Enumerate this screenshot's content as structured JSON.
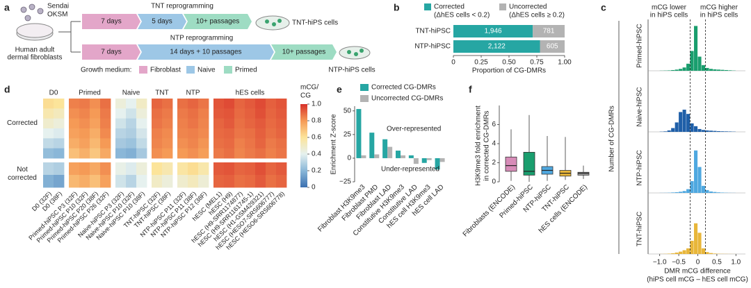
{
  "diagram": {
    "panel": "a",
    "virus": [
      "Sendai",
      "OKSM"
    ],
    "source": [
      "Human adult",
      "dermal fibroblasts"
    ],
    "tnt": {
      "title": "TNT reprogramming",
      "steps": [
        "7 days",
        "5 days",
        "10+ passages"
      ],
      "result": "TNT-hiPS cells"
    },
    "ntp": {
      "title": "NTP reprogramming",
      "steps": [
        "7 days",
        "14 days + 10 passages",
        "10+ passages"
      ],
      "result": "NTP-hiPS cells"
    },
    "medium": {
      "title": "Growth medium:",
      "items": [
        {
          "name": "Fibroblast",
          "color": "#e3a6c9"
        },
        {
          "name": "Naive",
          "color": "#9dc7e6"
        },
        {
          "name": "Primed",
          "color": "#9edcc3"
        }
      ]
    }
  },
  "chart_data": [
    {
      "type": "stacked-bar-h",
      "panel": "b",
      "normalize": true,
      "categories": [
        "TNT-hiPSC",
        "NTP-hiPSC"
      ],
      "series": [
        {
          "name": "Corrected",
          "subname": "(ΔhES cells < 0.2)",
          "color": "#26a6a3",
          "values": [
            1946,
            2122
          ],
          "value_labels": [
            "1,946",
            "2,122"
          ]
        },
        {
          "name": "Uncorrected",
          "subname": "(ΔhES cells ≥ 0.2)",
          "color": "#b3b3b3",
          "values": [
            781,
            605
          ]
        }
      ],
      "xlabel": "Proportion of CG-DMRs",
      "xlim": [
        0,
        1
      ],
      "xticks": [
        0,
        0.25,
        {
          "value": 0.5,
          "label": "0.50"
        },
        0.75,
        {
          "value": 1,
          "label": "1.00"
        }
      ]
    },
    {
      "type": "histogram",
      "panel": "c",
      "ylabel": "Number of CG-DMRs",
      "xlabel": [
        "DMR mCG difference",
        "(hiPS cell mCG – hES cell mCG)"
      ],
      "annotations": [
        [
          "mCG lower",
          "in hiPS cells"
        ],
        [
          "mCG higher",
          "in hiPS cells"
        ]
      ],
      "bins": [
        -1,
        -0.9,
        -0.8,
        -0.7,
        -0.6,
        -0.5,
        -0.4,
        -0.3,
        -0.2,
        -0.1,
        0,
        0.1,
        0.2,
        0.3,
        0.4,
        0.5,
        0.6,
        0.7,
        0.8,
        0.9,
        1
      ],
      "series": [
        {
          "name": "Primed-hiPSC",
          "color": "#1a9e6e",
          "values": [
            3,
            5,
            8,
            15,
            25,
            40,
            70,
            150,
            420,
            950,
            300,
            120,
            60,
            40,
            30,
            25,
            20,
            15,
            10,
            5
          ]
        },
        {
          "name": "Naive-hiPSC",
          "color": "#1f5fa8",
          "values": [
            5,
            10,
            30,
            80,
            200,
            420,
            470,
            380,
            180,
            120,
            60,
            40,
            30,
            25,
            20,
            15,
            12,
            10,
            8,
            5
          ]
        },
        {
          "name": "NTP-hiPSC",
          "color": "#4fa8e0",
          "values": [
            2,
            3,
            5,
            10,
            15,
            25,
            40,
            80,
            250,
            900,
            550,
            150,
            60,
            30,
            20,
            12,
            8,
            5,
            3,
            2
          ]
        },
        {
          "name": "TNT-hiPSC",
          "color": "#e8b63a",
          "values": [
            2,
            4,
            8,
            15,
            30,
            50,
            80,
            120,
            280,
            650,
            450,
            120,
            40,
            20,
            10,
            6,
            4,
            3,
            2,
            1
          ]
        }
      ],
      "xlim": [
        -1.25,
        1.25
      ],
      "ylim": [
        0,
        1000
      ],
      "xticks": [
        {
          "value": -1,
          "label": "−1.0"
        },
        {
          "value": -0.5,
          "label": "−0.5"
        },
        0,
        0.5,
        {
          "value": 1,
          "label": "1.0"
        }
      ],
      "reference_lines": [
        -0.2,
        0.2
      ]
    },
    {
      "type": "heatmap",
      "panel": "d",
      "groups": [
        {
          "name": "D0",
          "columns": [
            "D0 (32F)",
            "D0 (38F)"
          ]
        },
        {
          "name": "Primed",
          "columns": [
            "Primed-hiPSC P3 (32F)",
            "Primed-hiPSC P10 (32F)",
            "Primed-hiPSC P20 (38F)",
            "Primed-hiPSC P26 (32F)"
          ]
        },
        {
          "name": "Naive",
          "columns": [
            "Naive-hiPSC P3 (32F)",
            "Naive-hiPSC P10 (32F)",
            "Naive-hiPSC P10 (38F)"
          ]
        },
        {
          "name": "TNT",
          "columns": [
            "TNT-hiPSC (32F)",
            "TNT-hiPSC (38F)"
          ]
        },
        {
          "name": "NTP",
          "columns": [
            "NTP-hiPSC P11 (32F)",
            "NTP-hiPSC P11 (38F)",
            "NTP-hiPSC P12 (38F)"
          ]
        },
        {
          "name": "hES cells",
          "columns": [
            "hESC (MEL1)",
            "hESC (H9)",
            "hESC (H9-SRR1174877)",
            "hESC (H9-SRR1161745-1)",
            "hESC (H1-GSM429321)",
            "hESC (HESO7-SRS606777)",
            "hESC (HESO6-SRS606778)"
          ]
        }
      ],
      "row_groups": [
        {
          "name": "Corrected",
          "rows": [
            [
              0.62,
              0.6,
              0.85,
              0.86,
              0.82,
              0.88,
              0.45,
              0.4,
              0.5,
              0.9,
              0.88,
              0.88,
              0.9,
              0.87,
              0.93,
              0.95,
              0.9,
              0.92,
              0.95,
              0.91,
              0.93
            ],
            [
              0.55,
              0.52,
              0.82,
              0.84,
              0.8,
              0.86,
              0.4,
              0.35,
              0.45,
              0.88,
              0.86,
              0.86,
              0.88,
              0.85,
              0.92,
              0.93,
              0.89,
              0.91,
              0.94,
              0.9,
              0.92
            ],
            [
              0.48,
              0.45,
              0.8,
              0.82,
              0.78,
              0.85,
              0.35,
              0.3,
              0.4,
              0.87,
              0.85,
              0.85,
              0.87,
              0.84,
              0.9,
              0.92,
              0.88,
              0.9,
              0.92,
              0.89,
              0.91
            ],
            [
              0.4,
              0.38,
              0.78,
              0.8,
              0.75,
              0.83,
              0.3,
              0.28,
              0.36,
              0.85,
              0.83,
              0.84,
              0.85,
              0.83,
              0.89,
              0.9,
              0.87,
              0.88,
              0.91,
              0.88,
              0.9
            ],
            [
              0.32,
              0.3,
              0.75,
              0.78,
              0.72,
              0.8,
              0.26,
              0.24,
              0.32,
              0.84,
              0.82,
              0.82,
              0.84,
              0.81,
              0.88,
              0.89,
              0.85,
              0.87,
              0.9,
              0.86,
              0.88
            ],
            [
              0.22,
              0.2,
              0.7,
              0.74,
              0.68,
              0.76,
              0.2,
              0.18,
              0.26,
              0.82,
              0.8,
              0.8,
              0.82,
              0.79,
              0.86,
              0.88,
              0.84,
              0.86,
              0.88,
              0.85,
              0.87
            ]
          ]
        },
        {
          "name": "Not corrected",
          "rows": [
            [
              0.3,
              0.28,
              0.78,
              0.8,
              0.76,
              0.82,
              0.42,
              0.38,
              0.45,
              0.6,
              0.55,
              0.58,
              0.62,
              0.56,
              0.92,
              0.93,
              0.9,
              0.91,
              0.94,
              0.9,
              0.92
            ],
            [
              0.18,
              0.15,
              0.72,
              0.75,
              0.7,
              0.78,
              0.35,
              0.3,
              0.4,
              0.5,
              0.45,
              0.48,
              0.52,
              0.46,
              0.9,
              0.91,
              0.88,
              0.89,
              0.92,
              0.88,
              0.9
            ]
          ]
        }
      ],
      "colorbar_title": [
        "mCG/",
        "CG"
      ],
      "clim": [
        0,
        1
      ],
      "cticks": [
        0,
        0.2,
        0.4,
        0.6,
        0.8,
        {
          "value": 1,
          "label": "1.0"
        }
      ],
      "colors": [
        "#3b6fb0",
        "#8ab7d8",
        "#e6f1ef",
        "#fce49a",
        "#f59a56",
        "#d7302a"
      ]
    },
    {
      "type": "bar",
      "panel": "e",
      "categories": [
        "Fibroblast H3K9me3",
        "Fibroblast PMD",
        "Fibroblast LAD",
        "Constitutive H3K9me3",
        "Constitutive LAD",
        "hES cell H3K9me3",
        "hES cell LAD"
      ],
      "series": [
        {
          "name": "Corrected CG-DMRs",
          "color": "#26a6a3",
          "values": [
            52,
            27,
            20,
            8,
            3,
            -5,
            -12
          ]
        },
        {
          "name": "Uncorrected CG-DMRs",
          "color": "#b3b3b3",
          "values": [
            3,
            4,
            12,
            3,
            -6,
            -2,
            -4
          ]
        }
      ],
      "ylabel": "Enrichment Z-score",
      "ylim": [
        -25,
        55
      ],
      "yticks": [
        {
          "value": -25,
          "label": "−25"
        },
        0,
        25,
        50
      ],
      "annotations": [
        "Over-represented",
        "Under-represented"
      ]
    },
    {
      "type": "box",
      "panel": "f",
      "categories": [
        "Fibroblasts (ENCODE)",
        "Primed-hiPSC",
        "NTP-hiPSC",
        "TNT-hiPSC",
        "hES cells (ENCODE)"
      ],
      "colors": [
        "#d78cb8",
        "#1a9e6e",
        "#4fa8e0",
        "#e8b63a",
        "#9e9e9e"
      ],
      "stats": [
        {
          "whislo": 0.1,
          "q1": 1.1,
          "med": 1.7,
          "q3": 2.6,
          "whishi": 5.5
        },
        {
          "whislo": 0,
          "q1": 0.7,
          "med": 1.1,
          "q3": 3.1,
          "whishi": 7
        },
        {
          "whislo": 0.1,
          "q1": 0.8,
          "med": 1.2,
          "q3": 1.6,
          "whishi": 4.8
        },
        {
          "whislo": 0.2,
          "q1": 0.6,
          "med": 0.9,
          "q3": 1.2,
          "whishi": 4.7
        },
        {
          "whislo": 0.3,
          "q1": 0.7,
          "med": 0.9,
          "q3": 1.0,
          "whishi": 1.7
        }
      ],
      "ylabel": [
        "H3K9me3 fold enrichment",
        "in corrected CG-DMRs"
      ],
      "ylim": [
        0,
        8
      ],
      "yticks": [
        0,
        2,
        4,
        6
      ]
    }
  ]
}
